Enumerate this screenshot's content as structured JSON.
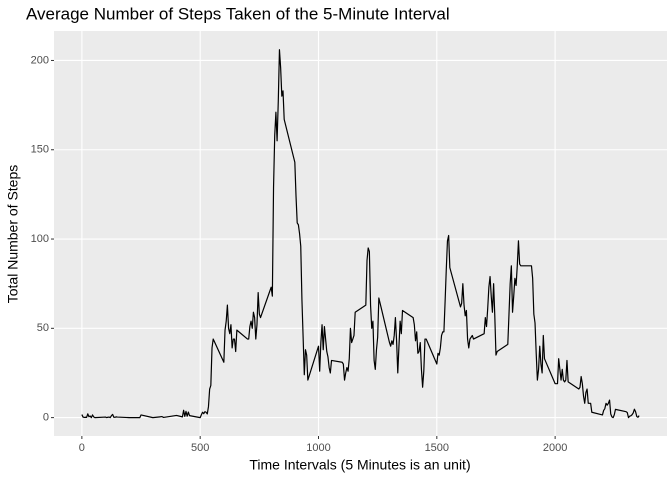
{
  "chart_data": {
    "type": "line",
    "title": "Average Number of Steps Taken of the 5-Minute Interval",
    "x_label": "Time Intervals (5 Minutes is an unit)",
    "y_label": "Total Number of Steps",
    "x": [
      0,
      5,
      10,
      15,
      20,
      25,
      30,
      35,
      40,
      45,
      50,
      55,
      100,
      105,
      110,
      115,
      120,
      125,
      130,
      135,
      140,
      145,
      150,
      200,
      230,
      240,
      245,
      250,
      300,
      330,
      335,
      340,
      345,
      400,
      425,
      430,
      435,
      440,
      445,
      450,
      455,
      500,
      505,
      510,
      515,
      520,
      525,
      530,
      535,
      540,
      545,
      550,
      555,
      600,
      605,
      610,
      615,
      620,
      625,
      630,
      635,
      640,
      645,
      650,
      655,
      700,
      705,
      710,
      715,
      720,
      725,
      730,
      735,
      740,
      745,
      750,
      755,
      800,
      805,
      810,
      815,
      820,
      825,
      830,
      835,
      840,
      845,
      850,
      855,
      900,
      905,
      910,
      915,
      920,
      925,
      930,
      935,
      940,
      945,
      950,
      955,
      1000,
      1005,
      1010,
      1015,
      1020,
      1025,
      1030,
      1035,
      1040,
      1045,
      1050,
      1055,
      1100,
      1105,
      1110,
      1115,
      1120,
      1125,
      1130,
      1135,
      1140,
      1145,
      1150,
      1155,
      1200,
      1205,
      1210,
      1215,
      1220,
      1225,
      1230,
      1235,
      1240,
      1245,
      1250,
      1255,
      1300,
      1305,
      1310,
      1315,
      1320,
      1325,
      1330,
      1335,
      1340,
      1345,
      1350,
      1355,
      1400,
      1405,
      1410,
      1415,
      1420,
      1425,
      1430,
      1435,
      1440,
      1445,
      1450,
      1455,
      1500,
      1505,
      1510,
      1515,
      1520,
      1525,
      1530,
      1535,
      1540,
      1545,
      1550,
      1555,
      1600,
      1605,
      1610,
      1615,
      1620,
      1625,
      1630,
      1635,
      1640,
      1645,
      1650,
      1655,
      1700,
      1705,
      1710,
      1715,
      1720,
      1725,
      1730,
      1735,
      1740,
      1745,
      1750,
      1755,
      1800,
      1805,
      1810,
      1815,
      1820,
      1825,
      1830,
      1835,
      1840,
      1845,
      1850,
      1855,
      1900,
      1905,
      1910,
      1915,
      1920,
      1925,
      1930,
      1935,
      1940,
      1945,
      1950,
      1955,
      2000,
      2005,
      2010,
      2015,
      2020,
      2025,
      2030,
      2035,
      2040,
      2045,
      2050,
      2055,
      2100,
      2105,
      2110,
      2115,
      2120,
      2125,
      2130,
      2135,
      2140,
      2145,
      2150,
      2155,
      2200,
      2205,
      2210,
      2215,
      2220,
      2225,
      2230,
      2235,
      2240,
      2245,
      2250,
      2255,
      2300,
      2305,
      2310,
      2315,
      2320,
      2325,
      2330,
      2335,
      2340,
      2345,
      2350,
      2355
    ],
    "series": [
      {
        "name": "steps",
        "color": "#000000",
        "values": [
          1.7,
          0.3,
          0.1,
          0.2,
          0.1,
          2.1,
          0.5,
          0.9,
          0,
          1.5,
          0.4,
          0,
          0.3,
          0,
          0.2,
          0.3,
          0,
          1.1,
          1.8,
          0.2,
          0.2,
          0.4,
          0.3,
          0,
          0,
          0,
          0,
          1.5,
          0,
          0.4,
          0.6,
          0.5,
          0.1,
          1.2,
          0.4,
          4.1,
          0.7,
          3.5,
          0.8,
          3.1,
          1.1,
          0,
          1.6,
          3,
          2.2,
          3.3,
          3,
          2.1,
          6.1,
          16,
          18,
          39,
          44,
          31,
          49,
          54,
          63,
          50,
          47,
          52,
          39,
          44,
          44,
          37,
          49,
          44,
          44,
          51,
          54,
          50,
          59,
          56,
          44,
          52,
          70,
          58,
          56,
          73,
          68,
          129,
          158,
          171,
          155,
          177,
          206,
          196,
          180,
          183,
          167,
          143,
          124,
          109,
          108,
          103,
          96,
          66,
          45,
          24,
          38,
          35,
          21,
          40,
          26,
          42,
          52,
          38,
          51,
          44,
          37,
          34,
          28,
          25,
          32,
          31,
          30,
          21,
          25,
          28,
          26,
          33,
          50,
          42,
          44,
          46,
          59,
          63,
          88,
          95,
          93,
          63,
          50,
          54,
          32,
          27,
          38,
          45,
          67,
          42,
          40,
          43,
          41,
          46,
          56,
          43,
          25,
          40,
          54,
          47,
          60,
          56,
          52,
          43,
          48,
          36,
          37,
          42,
          27,
          17,
          26,
          44,
          44,
          30,
          36,
          35,
          39,
          46,
          48,
          48,
          65,
          83,
          99,
          102,
          84,
          62,
          64,
          75,
          63,
          57,
          60,
          44,
          39,
          44,
          45,
          46,
          44,
          47,
          56,
          51,
          61,
          73,
          79,
          68,
          59,
          75,
          57,
          35,
          37,
          41,
          58,
          75,
          85,
          59,
          68,
          78,
          74,
          85,
          99,
          86,
          85,
          85,
          78,
          58,
          53,
          36,
          21,
          27,
          40,
          30,
          25,
          46,
          33,
          19,
          19,
          19,
          33,
          27,
          21,
          27,
          21,
          20,
          21,
          32,
          20,
          16,
          17,
          23,
          19,
          12,
          8,
          14,
          16,
          8,
          8,
          8,
          3,
          1.5,
          4,
          5,
          8,
          7,
          8,
          9.8,
          2,
          0.4,
          0,
          1.6,
          4.6,
          3.3,
          2.8,
          0,
          0.8,
          1,
          1.6,
          2.6,
          4.7,
          3.3,
          0.6,
          0.2,
          1.1
        ]
      }
    ],
    "xlim": [
      -117.75,
      2472.75
    ],
    "xticks": [
      0,
      500,
      1000,
      1500,
      2000
    ],
    "ylim": [
      -10.3,
      216.5
    ],
    "yticks": [
      0,
      50,
      100,
      150,
      200
    ],
    "grid": true
  }
}
